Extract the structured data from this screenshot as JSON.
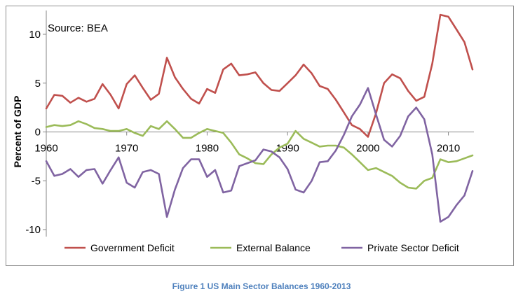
{
  "caption": "Figure 1 US Main Sector Balances 1960-2013",
  "chart_data": {
    "type": "line",
    "title": "",
    "annotation": "Source: BEA",
    "xlabel": "",
    "ylabel": "Percent of GDP",
    "xlim": [
      1960,
      2013
    ],
    "ylim": [
      -10,
      12.5
    ],
    "x_ticks": [
      1960,
      1970,
      1980,
      1990,
      2000,
      2010
    ],
    "y_ticks": [
      10,
      5,
      0,
      -5,
      -10
    ],
    "grid": false,
    "legend_position": "bottom",
    "x": [
      1960,
      1961,
      1962,
      1963,
      1964,
      1965,
      1966,
      1967,
      1968,
      1969,
      1970,
      1971,
      1972,
      1973,
      1974,
      1975,
      1976,
      1977,
      1978,
      1979,
      1980,
      1981,
      1982,
      1983,
      1984,
      1985,
      1986,
      1987,
      1988,
      1989,
      1990,
      1991,
      1992,
      1993,
      1994,
      1995,
      1996,
      1997,
      1998,
      1999,
      2000,
      2001,
      2002,
      2003,
      2004,
      2005,
      2006,
      2007,
      2008,
      2009,
      2010,
      2011,
      2012,
      2013
    ],
    "series": [
      {
        "name": "Government Deficit",
        "color": "#c0504d",
        "values": [
          2.4,
          3.8,
          3.7,
          3.0,
          3.5,
          3.1,
          3.4,
          4.9,
          3.8,
          2.4,
          4.9,
          5.8,
          4.5,
          3.3,
          3.9,
          7.6,
          5.6,
          4.4,
          3.4,
          2.9,
          4.4,
          4.0,
          6.4,
          7.0,
          5.8,
          5.9,
          6.1,
          5.0,
          4.3,
          4.2,
          5.0,
          5.8,
          6.9,
          6.0,
          4.7,
          4.4,
          3.3,
          2.0,
          0.7,
          0.3,
          -0.5,
          1.9,
          5.0,
          5.9,
          5.5,
          4.2,
          3.2,
          3.6,
          7.0,
          12.0,
          11.8,
          10.5,
          9.2,
          6.4
        ]
      },
      {
        "name": "External Balance",
        "color": "#9bbb59",
        "values": [
          0.5,
          0.7,
          0.6,
          0.7,
          1.1,
          0.8,
          0.4,
          0.3,
          0.1,
          0.1,
          0.3,
          -0.1,
          -0.4,
          0.6,
          0.3,
          1.1,
          0.3,
          -0.6,
          -0.6,
          -0.1,
          0.3,
          0.1,
          -0.1,
          -1.1,
          -2.3,
          -2.7,
          -3.2,
          -3.3,
          -2.3,
          -1.6,
          -1.2,
          0.1,
          -0.7,
          -1.1,
          -1.5,
          -1.4,
          -1.4,
          -1.6,
          -2.3,
          -3.1,
          -3.9,
          -3.7,
          -4.1,
          -4.5,
          -5.2,
          -5.7,
          -5.8,
          -5.0,
          -4.7,
          -2.8,
          -3.1,
          -3.0,
          -2.7,
          -2.4
        ]
      },
      {
        "name": "Private Sector Deficit",
        "color": "#8064a2",
        "values": [
          -3.0,
          -4.5,
          -4.3,
          -3.8,
          -4.6,
          -3.9,
          -3.8,
          -5.3,
          -3.9,
          -2.6,
          -5.2,
          -5.7,
          -4.1,
          -3.9,
          -4.3,
          -8.7,
          -5.9,
          -3.7,
          -2.8,
          -2.8,
          -4.6,
          -3.9,
          -6.2,
          -6.0,
          -3.5,
          -3.2,
          -2.9,
          -1.8,
          -2.0,
          -2.6,
          -3.8,
          -5.9,
          -6.2,
          -5.0,
          -3.1,
          -3.0,
          -1.9,
          -0.3,
          1.6,
          2.8,
          4.5,
          1.8,
          -0.8,
          -1.5,
          -0.4,
          1.6,
          2.5,
          1.3,
          -2.3,
          -9.2,
          -8.7,
          -7.5,
          -6.5,
          -4.0
        ]
      }
    ]
  }
}
